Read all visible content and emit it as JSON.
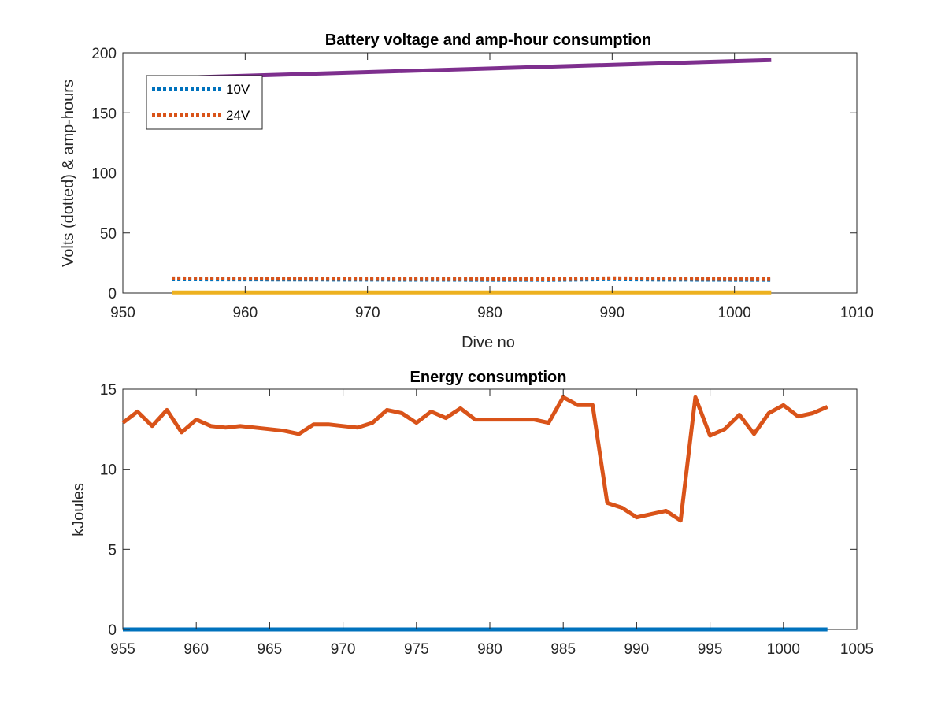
{
  "chart_data": [
    {
      "type": "line",
      "title": "Battery voltage and amp-hour consumption",
      "xlabel": "Dive no",
      "ylabel": "Volts (dotted) & amp-hours",
      "xlim": [
        950,
        1010
      ],
      "ylim": [
        0,
        200
      ],
      "xticks": [
        950,
        960,
        970,
        980,
        990,
        1000,
        1010
      ],
      "yticks": [
        0,
        50,
        100,
        150,
        200
      ],
      "legend": {
        "position": "top-left",
        "entries": [
          "10V",
          "24V"
        ]
      },
      "series": [
        {
          "name": "10V",
          "style": "dotted",
          "color": "#0072BD",
          "x": [
            954,
            970,
            985,
            987,
            990,
            993,
            1003
          ],
          "y": [
            11.5,
            11.2,
            11.0,
            11.2,
            11.6,
            11.3,
            11.0
          ]
        },
        {
          "name": "24V",
          "style": "dotted",
          "color": "#D95319",
          "x": [
            954,
            970,
            985,
            987,
            990,
            993,
            1003
          ],
          "y": [
            12.2,
            11.8,
            11.5,
            11.8,
            12.3,
            12.0,
            11.6
          ]
        },
        {
          "style": "solid",
          "color": "#EDB120",
          "x": [
            954,
            1003
          ],
          "y": [
            0.5,
            0.5
          ]
        },
        {
          "style": "solid",
          "color": "#7E2F8E",
          "x": [
            954,
            1003
          ],
          "y": [
            179,
            194
          ]
        }
      ]
    },
    {
      "type": "line",
      "title": "Energy consumption",
      "xlabel": "",
      "ylabel": "kJoules",
      "xlim": [
        955,
        1005
      ],
      "ylim": [
        0,
        15
      ],
      "xticks": [
        955,
        960,
        965,
        970,
        975,
        980,
        985,
        990,
        995,
        1000,
        1005
      ],
      "yticks": [
        0,
        5,
        10,
        15
      ],
      "series": [
        {
          "style": "solid",
          "color": "#D95319",
          "x": [
            955,
            956,
            957,
            958,
            959,
            960,
            961,
            962,
            963,
            964,
            965,
            966,
            967,
            968,
            969,
            970,
            971,
            972,
            973,
            974,
            975,
            976,
            977,
            978,
            979,
            980,
            981,
            982,
            983,
            984,
            985,
            986,
            987,
            988,
            989,
            990,
            991,
            992,
            993,
            994,
            995,
            996,
            997,
            998,
            999,
            1000,
            1001,
            1002,
            1003
          ],
          "y": [
            12.9,
            13.6,
            12.7,
            13.7,
            12.3,
            13.1,
            12.7,
            12.6,
            12.7,
            12.6,
            12.5,
            12.4,
            12.2,
            12.8,
            12.8,
            12.7,
            12.6,
            12.9,
            13.7,
            13.5,
            12.9,
            13.6,
            13.2,
            13.8,
            13.1,
            13.1,
            13.1,
            13.1,
            13.1,
            12.9,
            14.5,
            14.0,
            14.0,
            7.9,
            7.6,
            7.0,
            7.2,
            7.4,
            6.8,
            14.5,
            12.1,
            12.5,
            13.4,
            12.2,
            13.5,
            14.0,
            13.3,
            13.5,
            13.9
          ]
        },
        {
          "style": "solid",
          "color": "#0072BD",
          "x": [
            955,
            1003
          ],
          "y": [
            0,
            0
          ]
        }
      ]
    }
  ]
}
